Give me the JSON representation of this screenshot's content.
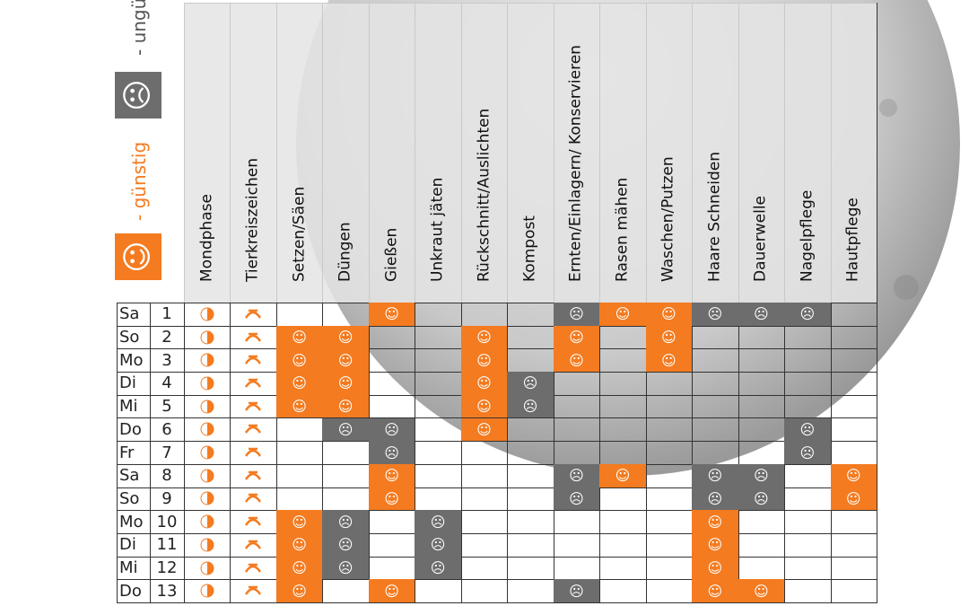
{
  "legend": {
    "good": {
      "symbol": "☺",
      "label": "- günstig"
    },
    "bad": {
      "symbol": "☹",
      "label": "- ungünstig"
    }
  },
  "table": {
    "headers": [
      "Mondphase",
      "Tierkreiszeichen",
      "Setzen/Säen",
      "Düngen",
      "Gießen",
      "Unkraut jäten",
      "Rückschnitt/Auslichten",
      "Kompost",
      "Ernten/Einlagern/ Konservieren",
      "Rasen mähen",
      "Waschen/Putzen",
      "Haare Schneiden",
      "Dauerwelle",
      "Nagelpflege",
      "Hautpflege"
    ],
    "rows": [
      {
        "day": "Sa",
        "date": 1,
        "cells": [
          null,
          null,
          "☺",
          null,
          null,
          null,
          "☹",
          "☺",
          "☺",
          "☹",
          "☹",
          "☹",
          null
        ]
      },
      {
        "day": "So",
        "date": 2,
        "cells": [
          "☺",
          "☺",
          null,
          null,
          "☺",
          null,
          "☺",
          null,
          "☺",
          null,
          null,
          null,
          null
        ]
      },
      {
        "day": "Mo",
        "date": 3,
        "cells": [
          "☺",
          "☺",
          null,
          null,
          "☺",
          null,
          "☺",
          null,
          "☺",
          null,
          null,
          null,
          null
        ]
      },
      {
        "day": "Di",
        "date": 4,
        "cells": [
          "☺",
          "☺",
          null,
          null,
          "☺",
          "☹",
          null,
          null,
          null,
          null,
          null,
          null,
          null
        ]
      },
      {
        "day": "Mi",
        "date": 5,
        "cells": [
          "☺",
          "☺",
          null,
          null,
          "☺",
          "☹",
          null,
          null,
          null,
          null,
          null,
          null,
          null
        ]
      },
      {
        "day": "Do",
        "date": 6,
        "cells": [
          null,
          "☹",
          "☹",
          null,
          "☺",
          null,
          null,
          null,
          null,
          null,
          null,
          "☹",
          null
        ]
      },
      {
        "day": "Fr",
        "date": 7,
        "cells": [
          null,
          null,
          "☹",
          null,
          null,
          null,
          null,
          null,
          null,
          null,
          null,
          "☹",
          null
        ]
      },
      {
        "day": "Sa",
        "date": 8,
        "cells": [
          null,
          null,
          "☺",
          null,
          null,
          null,
          "☹",
          "☺",
          null,
          "☹",
          "☹",
          null,
          "☺"
        ]
      },
      {
        "day": "So",
        "date": 9,
        "cells": [
          null,
          null,
          "☺",
          null,
          null,
          null,
          "☹",
          null,
          null,
          "☹",
          "☹",
          null,
          "☺"
        ]
      },
      {
        "day": "Mo",
        "date": 10,
        "cells": [
          "☺",
          "☹",
          null,
          "☹",
          null,
          null,
          null,
          null,
          null,
          "☺",
          null,
          null,
          null
        ]
      },
      {
        "day": "Di",
        "date": 11,
        "cells": [
          "☺",
          "☹",
          null,
          "☹",
          null,
          null,
          null,
          null,
          null,
          "☺",
          null,
          null,
          null
        ]
      },
      {
        "day": "Mi",
        "date": 12,
        "cells": [
          "☺",
          "☹",
          null,
          "☹",
          null,
          null,
          null,
          null,
          null,
          "☺",
          null,
          null,
          null
        ]
      },
      {
        "day": "Do",
        "date": 13,
        "cells": [
          "☺",
          null,
          "☺",
          null,
          null,
          null,
          "☹",
          null,
          null,
          "☺",
          "☺",
          null,
          null
        ]
      }
    ]
  }
}
